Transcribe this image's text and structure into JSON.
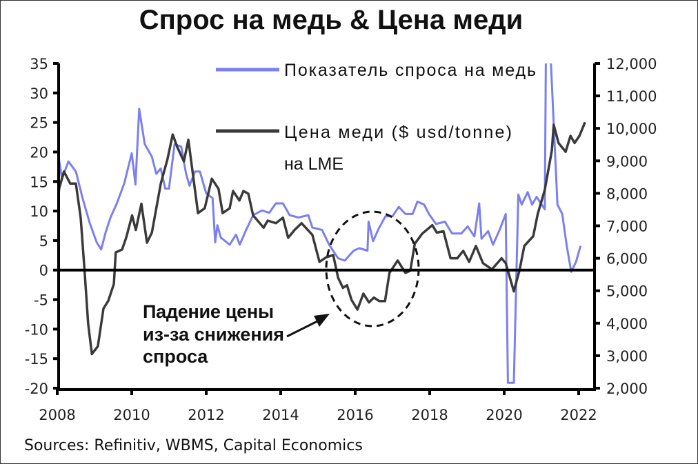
{
  "chart_data": {
    "type": "line",
    "title": "Спрос на медь & Цена меди",
    "source": "Sources: Refinitiv, WBMS, Capital Economics",
    "xlim": [
      2008,
      2022.4
    ],
    "x_ticks": [
      "2008",
      "2010",
      "2012",
      "2014",
      "2016",
      "2018",
      "2020",
      "2022"
    ],
    "ylim_left": [
      -20,
      35
    ],
    "y_ticks_left": [
      "35",
      "30",
      "25",
      "20",
      "15",
      "10",
      "5",
      "0",
      "-5",
      "-10",
      "-15",
      "-20"
    ],
    "ylim_right": [
      2000,
      12000
    ],
    "y_ticks_right": [
      "12,000",
      "11,000",
      "10,000",
      "9,000",
      "8,000",
      "7,000",
      "6,000",
      "5,000",
      "4,000",
      "3,000",
      "2,000"
    ],
    "legend": {
      "demand": "Показатель спроса на медь",
      "price_line1": "Цена меди ($ usd/tonne)",
      "price_line2": "на LME"
    },
    "annotation": {
      "line1": "Падение цены",
      "line2": "из-за снижения",
      "line3": "спроса"
    },
    "colors": {
      "demand": "#7b7ff0",
      "price": "#3a3a3a"
    },
    "series": [
      {
        "name": "Показатель спроса на медь",
        "axis": "left",
        "points": [
          [
            2008.0,
            20.5
          ],
          [
            2008.13,
            15.5
          ],
          [
            2008.3,
            18.4
          ],
          [
            2008.5,
            16.7
          ],
          [
            2008.68,
            12.2
          ],
          [
            2008.87,
            8
          ],
          [
            2009.06,
            4.7
          ],
          [
            2009.18,
            3.5
          ],
          [
            2009.3,
            6.4
          ],
          [
            2009.43,
            8.9
          ],
          [
            2009.6,
            11.3
          ],
          [
            2009.8,
            14.7
          ],
          [
            2010.0,
            19.8
          ],
          [
            2010.1,
            14.5
          ],
          [
            2010.2,
            27.3
          ],
          [
            2010.35,
            21.3
          ],
          [
            2010.54,
            19.2
          ],
          [
            2010.66,
            16.3
          ],
          [
            2010.78,
            17.2
          ],
          [
            2010.9,
            13.8
          ],
          [
            2011.0,
            13.8
          ],
          [
            2011.15,
            21.3
          ],
          [
            2011.33,
            20.9
          ],
          [
            2011.46,
            16.3
          ],
          [
            2011.55,
            14.3
          ],
          [
            2011.7,
            16.7
          ],
          [
            2011.83,
            16.7
          ],
          [
            2012.0,
            13
          ],
          [
            2012.17,
            12.2
          ],
          [
            2012.24,
            4.7
          ],
          [
            2012.3,
            7.6
          ],
          [
            2012.39,
            5.5
          ],
          [
            2012.63,
            4.3
          ],
          [
            2012.8,
            6
          ],
          [
            2012.9,
            4.3
          ],
          [
            2013.07,
            6.8
          ],
          [
            2013.26,
            9.3
          ],
          [
            2013.5,
            10.1
          ],
          [
            2013.69,
            9.7
          ],
          [
            2013.87,
            11.3
          ],
          [
            2014.06,
            11.3
          ],
          [
            2014.24,
            9.3
          ],
          [
            2014.48,
            8.9
          ],
          [
            2014.74,
            9.3
          ],
          [
            2014.85,
            7.2
          ],
          [
            2015.11,
            6.8
          ],
          [
            2015.3,
            4.3
          ],
          [
            2015.54,
            2
          ],
          [
            2015.72,
            1.6
          ],
          [
            2015.96,
            3.3
          ],
          [
            2016.11,
            3.7
          ],
          [
            2016.33,
            3.3
          ],
          [
            2016.36,
            8.2
          ],
          [
            2016.48,
            4.9
          ],
          [
            2016.63,
            7
          ],
          [
            2016.81,
            9.1
          ],
          [
            2017.0,
            9.1
          ],
          [
            2017.17,
            10.7
          ],
          [
            2017.35,
            9.5
          ],
          [
            2017.54,
            9.5
          ],
          [
            2017.67,
            11.6
          ],
          [
            2017.85,
            11.1
          ],
          [
            2017.98,
            9.5
          ],
          [
            2018.17,
            7.8
          ],
          [
            2018.41,
            8.2
          ],
          [
            2018.6,
            6.2
          ],
          [
            2018.85,
            6.2
          ],
          [
            2019.02,
            7.4
          ],
          [
            2019.2,
            5.7
          ],
          [
            2019.33,
            11.3
          ],
          [
            2019.39,
            5.3
          ],
          [
            2019.57,
            6.6
          ],
          [
            2019.7,
            4.3
          ],
          [
            2019.89,
            7
          ],
          [
            2020.04,
            9.5
          ],
          [
            2020.1,
            -19.1
          ],
          [
            2020.26,
            -19.1
          ],
          [
            2020.38,
            12.8
          ],
          [
            2020.47,
            11.1
          ],
          [
            2020.63,
            13.2
          ],
          [
            2020.75,
            11.1
          ],
          [
            2020.87,
            12.4
          ],
          [
            2021.09,
            10.3
          ],
          [
            2021.12,
            37
          ],
          [
            2021.24,
            37
          ],
          [
            2021.43,
            11.1
          ],
          [
            2021.56,
            9.5
          ],
          [
            2021.68,
            4.1
          ],
          [
            2021.8,
            -0.3
          ],
          [
            2021.93,
            1.4
          ],
          [
            2022.05,
            4.1
          ]
        ]
      },
      {
        "name": "Цена меди ($ usd/tonne) на LME",
        "axis": "right",
        "points": [
          [
            2008.0,
            7470
          ],
          [
            2008.05,
            8140
          ],
          [
            2008.18,
            8670
          ],
          [
            2008.35,
            8300
          ],
          [
            2008.5,
            8300
          ],
          [
            2008.63,
            7250
          ],
          [
            2008.74,
            5500
          ],
          [
            2008.83,
            3990
          ],
          [
            2008.93,
            3050
          ],
          [
            2009.09,
            3290
          ],
          [
            2009.24,
            4450
          ],
          [
            2009.37,
            4690
          ],
          [
            2009.52,
            5210
          ],
          [
            2009.57,
            6180
          ],
          [
            2009.74,
            6270
          ],
          [
            2009.85,
            6630
          ],
          [
            2010.01,
            7320
          ],
          [
            2010.11,
            6870
          ],
          [
            2010.26,
            7680
          ],
          [
            2010.41,
            6480
          ],
          [
            2010.54,
            6790
          ],
          [
            2010.78,
            8300
          ],
          [
            2010.96,
            9050
          ],
          [
            2011.1,
            9810
          ],
          [
            2011.22,
            9430
          ],
          [
            2011.4,
            8980
          ],
          [
            2011.52,
            9650
          ],
          [
            2011.78,
            7390
          ],
          [
            2011.96,
            7540
          ],
          [
            2012.15,
            8450
          ],
          [
            2012.33,
            8140
          ],
          [
            2012.44,
            7390
          ],
          [
            2012.63,
            7540
          ],
          [
            2012.72,
            8070
          ],
          [
            2012.89,
            7780
          ],
          [
            2013.0,
            8070
          ],
          [
            2013.13,
            7990
          ],
          [
            2013.26,
            7320
          ],
          [
            2013.54,
            6940
          ],
          [
            2013.65,
            7160
          ],
          [
            2013.87,
            7080
          ],
          [
            2014.06,
            7250
          ],
          [
            2014.2,
            6630
          ],
          [
            2014.37,
            6870
          ],
          [
            2014.56,
            7080
          ],
          [
            2014.85,
            6720
          ],
          [
            2015.04,
            5890
          ],
          [
            2015.22,
            6030
          ],
          [
            2015.41,
            6100
          ],
          [
            2015.54,
            5400
          ],
          [
            2015.67,
            5090
          ],
          [
            2015.78,
            5170
          ],
          [
            2015.9,
            4720
          ],
          [
            2016.06,
            4420
          ],
          [
            2016.22,
            4910
          ],
          [
            2016.37,
            4640
          ],
          [
            2016.5,
            4790
          ],
          [
            2016.65,
            4680
          ],
          [
            2016.8,
            4680
          ],
          [
            2016.92,
            5550
          ],
          [
            2017.14,
            5930
          ],
          [
            2017.35,
            5550
          ],
          [
            2017.48,
            5620
          ],
          [
            2017.6,
            6450
          ],
          [
            2017.8,
            6760
          ],
          [
            2018.07,
            7020
          ],
          [
            2018.19,
            6790
          ],
          [
            2018.37,
            6830
          ],
          [
            2018.56,
            6000
          ],
          [
            2018.74,
            6000
          ],
          [
            2018.9,
            6230
          ],
          [
            2019.06,
            5890
          ],
          [
            2019.24,
            6380
          ],
          [
            2019.43,
            5850
          ],
          [
            2019.67,
            5660
          ],
          [
            2019.93,
            6000
          ],
          [
            2020.04,
            5850
          ],
          [
            2020.26,
            4980
          ],
          [
            2020.41,
            5620
          ],
          [
            2020.54,
            6380
          ],
          [
            2020.78,
            6680
          ],
          [
            2020.9,
            7360
          ],
          [
            2021.09,
            8110
          ],
          [
            2021.28,
            9320
          ],
          [
            2021.33,
            10110
          ],
          [
            2021.46,
            9550
          ],
          [
            2021.65,
            9280
          ],
          [
            2021.78,
            9770
          ],
          [
            2021.89,
            9550
          ],
          [
            2022.02,
            9770
          ],
          [
            2022.17,
            10190
          ]
        ]
      }
    ]
  }
}
